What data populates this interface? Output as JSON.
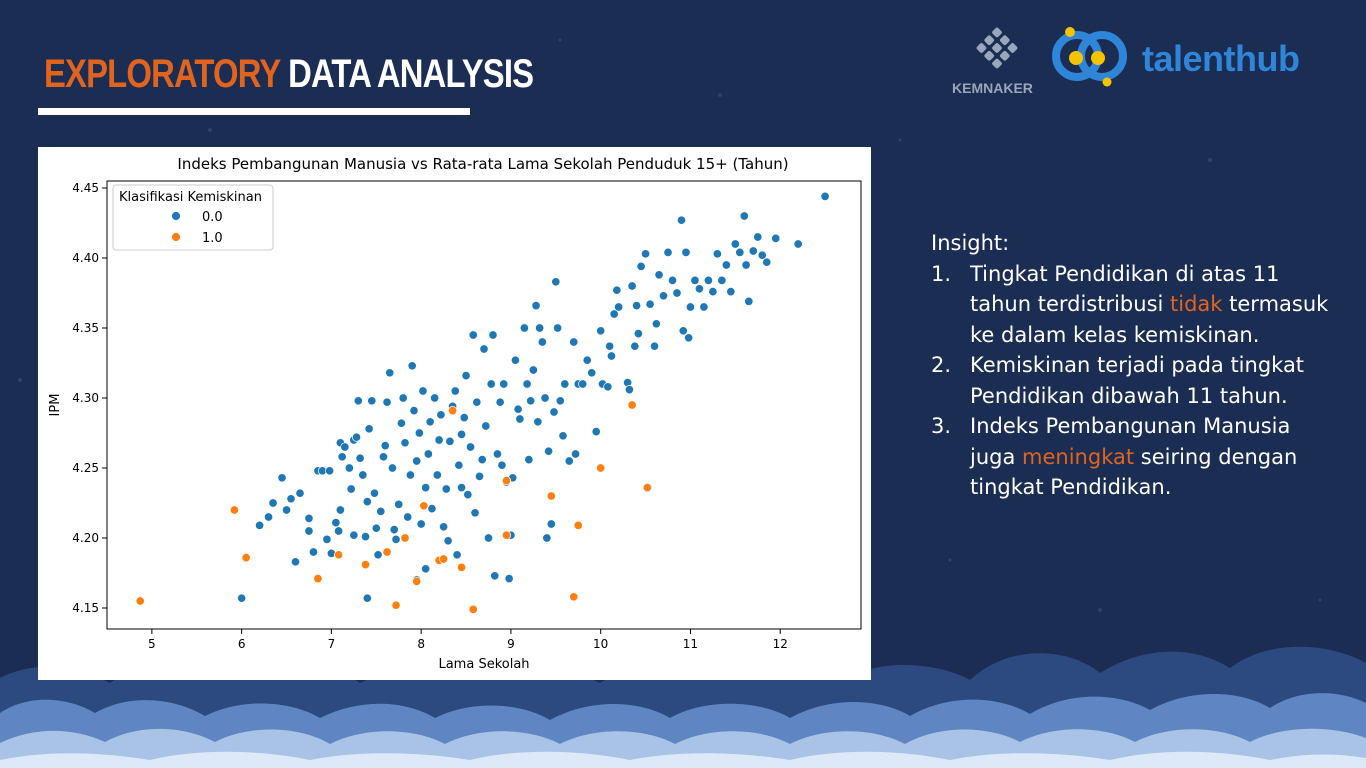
{
  "slide": {
    "title_part1": "EXPLORATORY",
    "title_part2": "DATA ANALYSIS",
    "logo_kemnaker": "KEMNAKER",
    "logo_talenthub": "talenthub"
  },
  "colors": {
    "background": "#1b2d52",
    "accent": "#e0641e",
    "series_0": "#1f77b4",
    "series_1": "#ff7f0e",
    "talenthub_blue": "#2f86d8",
    "talenthub_yellow": "#f5c400"
  },
  "insight": {
    "heading": "Insight:",
    "items": [
      {
        "number": "1.",
        "before": "Tingkat Pendidikan di atas 11 tahun terdistribusi ",
        "highlight": "tidak",
        "after": " termasuk ke dalam kelas kemiskinan."
      },
      {
        "number": "2.",
        "before": "Kemiskinan terjadi pada tingkat Pendidikan dibawah 11 tahun.",
        "highlight": "",
        "after": ""
      },
      {
        "number": "3.",
        "before": "Indeks Pembangunan Manusia juga ",
        "highlight": "meningkat",
        "after": " seiring dengan tingkat Pendidikan."
      }
    ]
  },
  "chart_data": {
    "type": "scatter",
    "title": "Indeks Pembangunan Manusia vs Rata-rata Lama Sekolah Penduduk 15+ (Tahun)",
    "xlabel": "Lama Sekolah",
    "ylabel": "IPM",
    "xlim": [
      4.5,
      12.9
    ],
    "ylim": [
      4.135,
      4.455
    ],
    "xticks": [
      5,
      6,
      7,
      8,
      9,
      10,
      11,
      12
    ],
    "yticks": [
      4.15,
      4.2,
      4.25,
      4.3,
      4.35,
      4.4,
      4.45
    ],
    "ytick_labels": [
      "4.15",
      "4.20",
      "4.25",
      "4.30",
      "4.35",
      "4.40",
      "4.45"
    ],
    "grid": false,
    "legend": {
      "title": "Klasifikasi Kemiskinan",
      "position": "top-left",
      "entries": [
        "0.0",
        "1.0"
      ]
    },
    "series": [
      {
        "name": "0.0",
        "color": "#1f77b4",
        "points": [
          [
            6.0,
            4.157
          ],
          [
            6.2,
            4.209
          ],
          [
            6.3,
            4.215
          ],
          [
            6.35,
            4.225
          ],
          [
            6.45,
            4.243
          ],
          [
            6.5,
            4.22
          ],
          [
            6.55,
            4.228
          ],
          [
            6.6,
            4.183
          ],
          [
            6.65,
            4.232
          ],
          [
            6.75,
            4.205
          ],
          [
            6.75,
            4.214
          ],
          [
            6.8,
            4.19
          ],
          [
            6.85,
            4.248
          ],
          [
            6.9,
            4.248
          ],
          [
            6.95,
            4.199
          ],
          [
            6.98,
            4.248
          ],
          [
            7.0,
            4.189
          ],
          [
            7.05,
            4.211
          ],
          [
            7.08,
            4.205
          ],
          [
            7.1,
            4.268
          ],
          [
            7.1,
            4.22
          ],
          [
            7.12,
            4.258
          ],
          [
            7.15,
            4.265
          ],
          [
            7.2,
            4.25
          ],
          [
            7.22,
            4.235
          ],
          [
            7.25,
            4.202
          ],
          [
            7.25,
            4.27
          ],
          [
            7.28,
            4.272
          ],
          [
            7.3,
            4.298
          ],
          [
            7.32,
            4.257
          ],
          [
            7.35,
            4.245
          ],
          [
            7.38,
            4.201
          ],
          [
            7.4,
            4.226
          ],
          [
            7.42,
            4.278
          ],
          [
            7.45,
            4.298
          ],
          [
            7.48,
            4.232
          ],
          [
            7.5,
            4.207
          ],
          [
            7.52,
            4.188
          ],
          [
            7.55,
            4.219
          ],
          [
            7.58,
            4.258
          ],
          [
            7.6,
            4.266
          ],
          [
            7.62,
            4.297
          ],
          [
            7.65,
            4.318
          ],
          [
            7.68,
            4.25
          ],
          [
            7.7,
            4.206
          ],
          [
            7.72,
            4.199
          ],
          [
            7.75,
            4.224
          ],
          [
            7.78,
            4.282
          ],
          [
            7.8,
            4.3
          ],
          [
            7.82,
            4.268
          ],
          [
            7.85,
            4.215
          ],
          [
            7.88,
            4.245
          ],
          [
            7.9,
            4.323
          ],
          [
            7.92,
            4.291
          ],
          [
            7.95,
            4.255
          ],
          [
            7.98,
            4.275
          ],
          [
            8.0,
            4.21
          ],
          [
            8.02,
            4.305
          ],
          [
            8.05,
            4.236
          ],
          [
            8.08,
            4.26
          ],
          [
            8.1,
            4.283
          ],
          [
            8.12,
            4.221
          ],
          [
            8.15,
            4.3
          ],
          [
            8.18,
            4.245
          ],
          [
            8.2,
            4.27
          ],
          [
            8.22,
            4.288
          ],
          [
            8.25,
            4.208
          ],
          [
            8.28,
            4.235
          ],
          [
            8.3,
            4.198
          ],
          [
            8.32,
            4.269
          ],
          [
            8.35,
            4.294
          ],
          [
            8.38,
            4.305
          ],
          [
            8.4,
            4.188
          ],
          [
            8.42,
            4.252
          ],
          [
            8.45,
            4.274
          ],
          [
            8.48,
            4.286
          ],
          [
            8.5,
            4.316
          ],
          [
            8.52,
            4.231
          ],
          [
            8.55,
            4.265
          ],
          [
            8.58,
            4.345
          ],
          [
            8.6,
            4.218
          ],
          [
            8.62,
            4.297
          ],
          [
            8.65,
            4.244
          ],
          [
            8.68,
            4.256
          ],
          [
            8.7,
            4.335
          ],
          [
            8.72,
            4.28
          ],
          [
            8.75,
            4.2
          ],
          [
            8.78,
            4.31
          ],
          [
            8.8,
            4.345
          ],
          [
            8.82,
            4.173
          ],
          [
            8.85,
            4.26
          ],
          [
            8.88,
            4.297
          ],
          [
            8.9,
            4.252
          ],
          [
            8.92,
            4.31
          ],
          [
            8.95,
            4.24
          ],
          [
            8.98,
            4.171
          ],
          [
            9.0,
            4.202
          ],
          [
            9.02,
            4.243
          ],
          [
            9.05,
            4.327
          ],
          [
            9.08,
            4.292
          ],
          [
            9.1,
            4.285
          ],
          [
            9.15,
            4.35
          ],
          [
            9.18,
            4.31
          ],
          [
            9.2,
            4.256
          ],
          [
            9.22,
            4.298
          ],
          [
            9.25,
            4.32
          ],
          [
            9.28,
            4.366
          ],
          [
            9.3,
            4.283
          ],
          [
            9.32,
            4.35
          ],
          [
            9.35,
            4.34
          ],
          [
            9.38,
            4.3
          ],
          [
            9.4,
            4.2
          ],
          [
            9.42,
            4.262
          ],
          [
            9.45,
            4.21
          ],
          [
            9.48,
            4.29
          ],
          [
            9.5,
            4.383
          ],
          [
            9.52,
            4.35
          ],
          [
            9.55,
            4.298
          ],
          [
            9.58,
            4.273
          ],
          [
            9.6,
            4.31
          ],
          [
            9.65,
            4.255
          ],
          [
            9.7,
            4.34
          ],
          [
            9.72,
            4.26
          ],
          [
            9.75,
            4.31
          ],
          [
            9.8,
            4.31
          ],
          [
            9.85,
            4.327
          ],
          [
            9.9,
            4.318
          ],
          [
            9.95,
            4.276
          ],
          [
            10.0,
            4.348
          ],
          [
            10.02,
            4.31
          ],
          [
            10.08,
            4.308
          ],
          [
            10.1,
            4.337
          ],
          [
            10.12,
            4.33
          ],
          [
            10.15,
            4.36
          ],
          [
            10.18,
            4.377
          ],
          [
            10.2,
            4.365
          ],
          [
            10.3,
            4.311
          ],
          [
            10.32,
            4.306
          ],
          [
            10.35,
            4.38
          ],
          [
            10.38,
            4.337
          ],
          [
            10.4,
            4.366
          ],
          [
            10.42,
            4.346
          ],
          [
            10.45,
            4.394
          ],
          [
            10.5,
            4.403
          ],
          [
            10.55,
            4.367
          ],
          [
            10.6,
            4.337
          ],
          [
            10.62,
            4.353
          ],
          [
            10.65,
            4.388
          ],
          [
            10.7,
            4.373
          ],
          [
            10.75,
            4.404
          ],
          [
            10.8,
            4.384
          ],
          [
            10.85,
            4.375
          ],
          [
            10.9,
            4.427
          ],
          [
            10.92,
            4.348
          ],
          [
            10.95,
            4.404
          ],
          [
            10.98,
            4.343
          ],
          [
            11.0,
            4.365
          ],
          [
            11.05,
            4.384
          ],
          [
            11.1,
            4.378
          ],
          [
            11.15,
            4.365
          ],
          [
            11.2,
            4.384
          ],
          [
            11.25,
            4.376
          ],
          [
            11.3,
            4.403
          ],
          [
            11.35,
            4.384
          ],
          [
            11.4,
            4.395
          ],
          [
            11.45,
            4.376
          ],
          [
            11.5,
            4.41
          ],
          [
            11.55,
            4.404
          ],
          [
            11.6,
            4.43
          ],
          [
            11.62,
            4.395
          ],
          [
            11.65,
            4.369
          ],
          [
            11.7,
            4.405
          ],
          [
            11.75,
            4.415
          ],
          [
            11.8,
            4.402
          ],
          [
            11.85,
            4.397
          ],
          [
            11.95,
            4.414
          ],
          [
            12.2,
            4.41
          ],
          [
            12.5,
            4.444
          ],
          [
            7.4,
            4.157
          ],
          [
            7.95,
            4.17
          ],
          [
            8.05,
            4.178
          ],
          [
            8.45,
            4.236
          ]
        ]
      },
      {
        "name": "1.0",
        "color": "#ff7f0e",
        "points": [
          [
            4.87,
            4.155
          ],
          [
            5.92,
            4.22
          ],
          [
            6.05,
            4.186
          ],
          [
            6.85,
            4.171
          ],
          [
            7.08,
            4.188
          ],
          [
            7.38,
            4.181
          ],
          [
            7.62,
            4.19
          ],
          [
            7.72,
            4.152
          ],
          [
            7.82,
            4.2
          ],
          [
            7.95,
            4.169
          ],
          [
            8.03,
            4.223
          ],
          [
            8.2,
            4.184
          ],
          [
            8.25,
            4.185
          ],
          [
            8.35,
            4.291
          ],
          [
            8.45,
            4.179
          ],
          [
            8.58,
            4.149
          ],
          [
            8.95,
            4.202
          ],
          [
            8.95,
            4.241
          ],
          [
            9.45,
            4.23
          ],
          [
            9.7,
            4.158
          ],
          [
            9.75,
            4.209
          ],
          [
            10.0,
            4.25
          ],
          [
            10.35,
            4.295
          ],
          [
            10.52,
            4.236
          ]
        ]
      }
    ]
  }
}
